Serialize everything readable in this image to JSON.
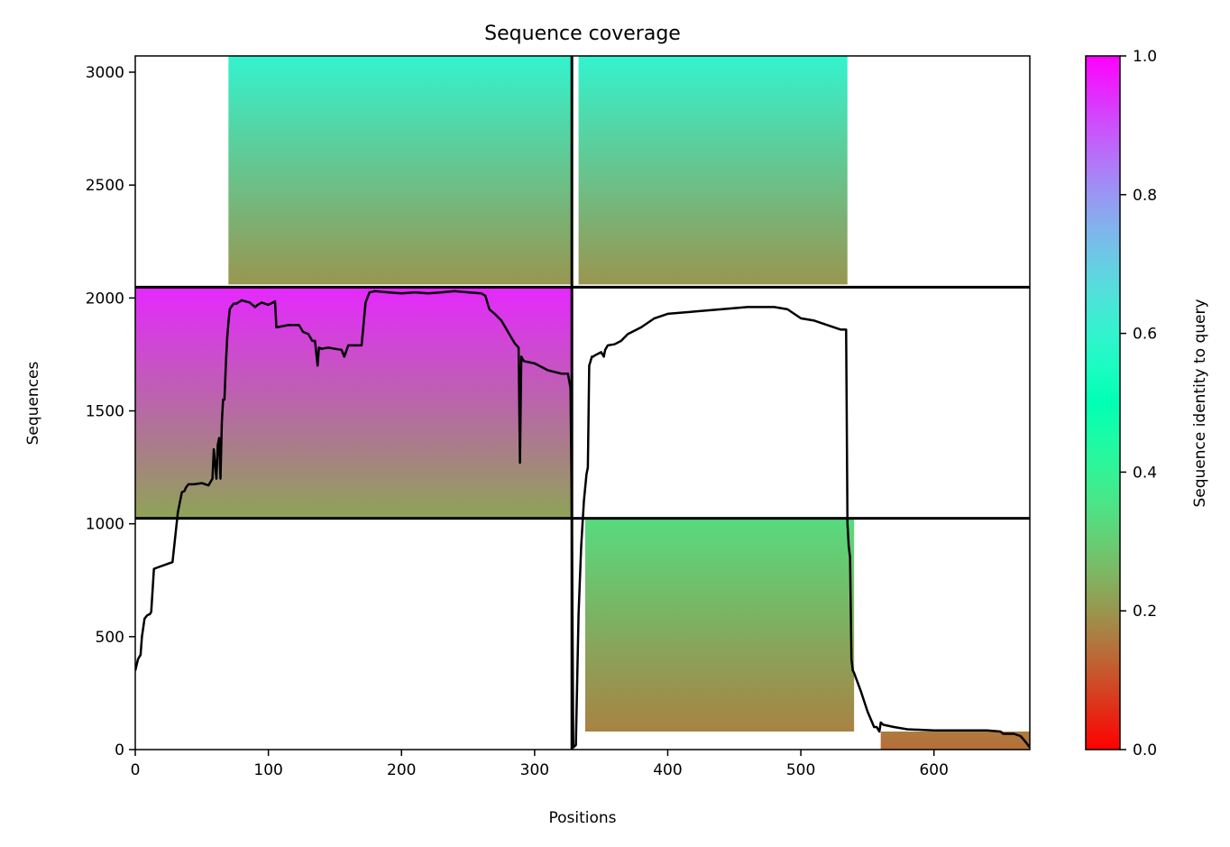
{
  "chart_data": {
    "type": "heatmap",
    "title": "Sequence coverage",
    "xlabel": "Positions",
    "ylabel": "Sequences",
    "xlim": [
      0,
      672
    ],
    "ylim": [
      0,
      3072
    ],
    "xticks": [
      "0",
      "100",
      "200",
      "300",
      "400",
      "500",
      "600"
    ],
    "yticks": [
      "0",
      "500",
      "1000",
      "1500",
      "2000",
      "2500",
      "3000"
    ],
    "grid": false,
    "colorbar": {
      "label": "Sequence identity to query",
      "range": [
        0,
        1
      ],
      "ticks": [
        "0.0",
        "0.2",
        "0.4",
        "0.6",
        "0.8",
        "1.0"
      ],
      "colormap": "rainbow_r"
    },
    "block_dividers": {
      "x": [
        328
      ],
      "y": [
        1024,
        2048
      ]
    },
    "coverage_blocks": [
      {
        "x": [
          0,
          328
        ],
        "y": [
          1024,
          2048
        ],
        "identity_bottom": 0.22,
        "identity_top": 0.95
      },
      {
        "x": [
          70,
          328
        ],
        "y": [
          2060,
          3072
        ],
        "identity_bottom": 0.2,
        "identity_top": 0.6
      },
      {
        "x": [
          333,
          535
        ],
        "y": [
          2060,
          3072
        ],
        "identity_bottom": 0.2,
        "identity_top": 0.6
      },
      {
        "x": [
          338,
          540
        ],
        "y": [
          80,
          1020
        ],
        "identity_bottom": 0.17,
        "identity_top": 0.33
      },
      {
        "x": [
          560,
          672
        ],
        "y": [
          0,
          80
        ],
        "identity_bottom": 0.14,
        "identity_top": 0.16
      }
    ],
    "series": [
      {
        "type": "line",
        "color": "#000000",
        "x": [
          0,
          2,
          4,
          5,
          7,
          9,
          11,
          12,
          14,
          16,
          28,
          32,
          35,
          37,
          38,
          40,
          44,
          50,
          55,
          58,
          59,
          61,
          62,
          63,
          64,
          65,
          66,
          67,
          68,
          69,
          70,
          71,
          72,
          74,
          76,
          80,
          86,
          90,
          92,
          95,
          100,
          105,
          106,
          115,
          120,
          123,
          126,
          130,
          133,
          135,
          137,
          138,
          140,
          145,
          150,
          155,
          157,
          160,
          165,
          168,
          170,
          173,
          176,
          180,
          190,
          200,
          210,
          220,
          230,
          240,
          250,
          260,
          263,
          266,
          270,
          275,
          280,
          285,
          288,
          289,
          290,
          292,
          300,
          310,
          320,
          325,
          327,
          328,
          329,
          331,
          333,
          335,
          337,
          339,
          340,
          341,
          342,
          343,
          344,
          345,
          350,
          352,
          353,
          355,
          360,
          365,
          370,
          380,
          390,
          400,
          420,
          440,
          460,
          480,
          490,
          500,
          510,
          520,
          530,
          534,
          535,
          536,
          537,
          538,
          539,
          540,
          545,
          550,
          555,
          557,
          559,
          560,
          562,
          570,
          580,
          600,
          620,
          640,
          650,
          652,
          660,
          665,
          668,
          672
        ],
        "y": [
          350,
          400,
          420,
          500,
          580,
          595,
          600,
          610,
          800,
          805,
          830,
          1050,
          1140,
          1145,
          1160,
          1175,
          1175,
          1180,
          1170,
          1200,
          1330,
          1200,
          1350,
          1380,
          1200,
          1450,
          1550,
          1550,
          1700,
          1820,
          1890,
          1950,
          1960,
          1975,
          1975,
          1990,
          1980,
          1960,
          1970,
          1980,
          1970,
          1985,
          1870,
          1880,
          1880,
          1880,
          1850,
          1840,
          1810,
          1810,
          1700,
          1780,
          1775,
          1780,
          1775,
          1770,
          1740,
          1790,
          1790,
          1790,
          1790,
          1980,
          2025,
          2030,
          2025,
          2020,
          2025,
          2020,
          2025,
          2030,
          2025,
          2020,
          2010,
          1950,
          1930,
          1900,
          1850,
          1800,
          1780,
          1270,
          1740,
          1720,
          1710,
          1680,
          1665,
          1665,
          1600,
          1000,
          10,
          20,
          600,
          900,
          1100,
          1220,
          1250,
          1700,
          1720,
          1740,
          1740,
          1745,
          1760,
          1740,
          1770,
          1790,
          1795,
          1810,
          1840,
          1870,
          1910,
          1930,
          1940,
          1950,
          1960,
          1960,
          1950,
          1910,
          1900,
          1880,
          1860,
          1860,
          1000,
          900,
          850,
          400,
          350,
          340,
          260,
          170,
          100,
          100,
          80,
          120,
          110,
          100,
          90,
          85,
          85,
          85,
          80,
          70,
          70,
          60,
          40,
          10
        ]
      }
    ]
  }
}
